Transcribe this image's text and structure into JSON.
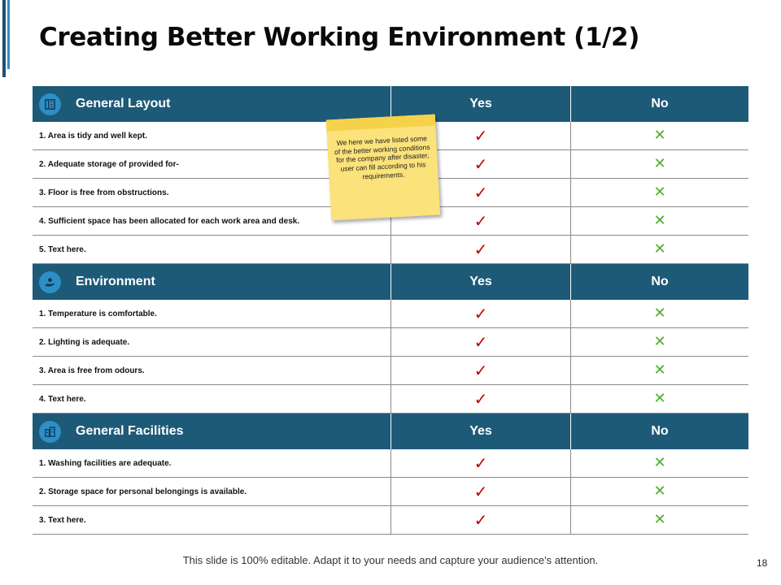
{
  "title": "Creating Better Working Environment (1/2)",
  "colors": {
    "header_bg": "#1d5a78",
    "icon_circle": "#2e8ec6",
    "check": "#c40000",
    "cross": "#4caf2a",
    "note": "#fbe27a"
  },
  "sections": [
    {
      "title": "General Layout",
      "icon": "book-icon",
      "yes_label": "Yes",
      "no_label": "No",
      "items": [
        {
          "text": "1. Area is tidy and well kept.",
          "yes": "✓",
          "no": "✕"
        },
        {
          "text": "2. Adequate storage of provided for-",
          "yes": "✓",
          "no": "✕"
        },
        {
          "text": "3. Floor is free from obstructions.",
          "yes": "✓",
          "no": "✕"
        },
        {
          "text": "4. Sufficient space has been allocated for each work area and desk.",
          "yes": "✓",
          "no": "✕"
        },
        {
          "text": "5. Text here.",
          "yes": "✓",
          "no": "✕"
        }
      ]
    },
    {
      "title": "Environment",
      "icon": "hand-plant-icon",
      "yes_label": "Yes",
      "no_label": "No",
      "items": [
        {
          "text": "1. Temperature is comfortable.",
          "yes": "✓",
          "no": "✕"
        },
        {
          "text": "2. Lighting is adequate.",
          "yes": "✓",
          "no": "✕"
        },
        {
          "text": "3.  Area is free from odours.",
          "yes": "✓",
          "no": "✕"
        },
        {
          "text": "4. Text here.",
          "yes": "✓",
          "no": "✕"
        }
      ]
    },
    {
      "title": "General Facilities",
      "icon": "building-icon",
      "yes_label": "Yes",
      "no_label": "No",
      "items": [
        {
          "text": "1. Washing facilities are adequate.",
          "yes": "✓",
          "no": "✕"
        },
        {
          "text": "2. Storage space for personal belongings is available.",
          "yes": "✓",
          "no": "✕"
        },
        {
          "text": "3. Text here.",
          "yes": "✓",
          "no": "✕"
        }
      ]
    }
  ],
  "sticky_note": "We here we have listed some of the better working conditions for the company after disaster, user can fill according to his requirements.",
  "footer": "This slide is 100% editable. Adapt it to your needs and capture your audience's attention.",
  "page_number": "18"
}
